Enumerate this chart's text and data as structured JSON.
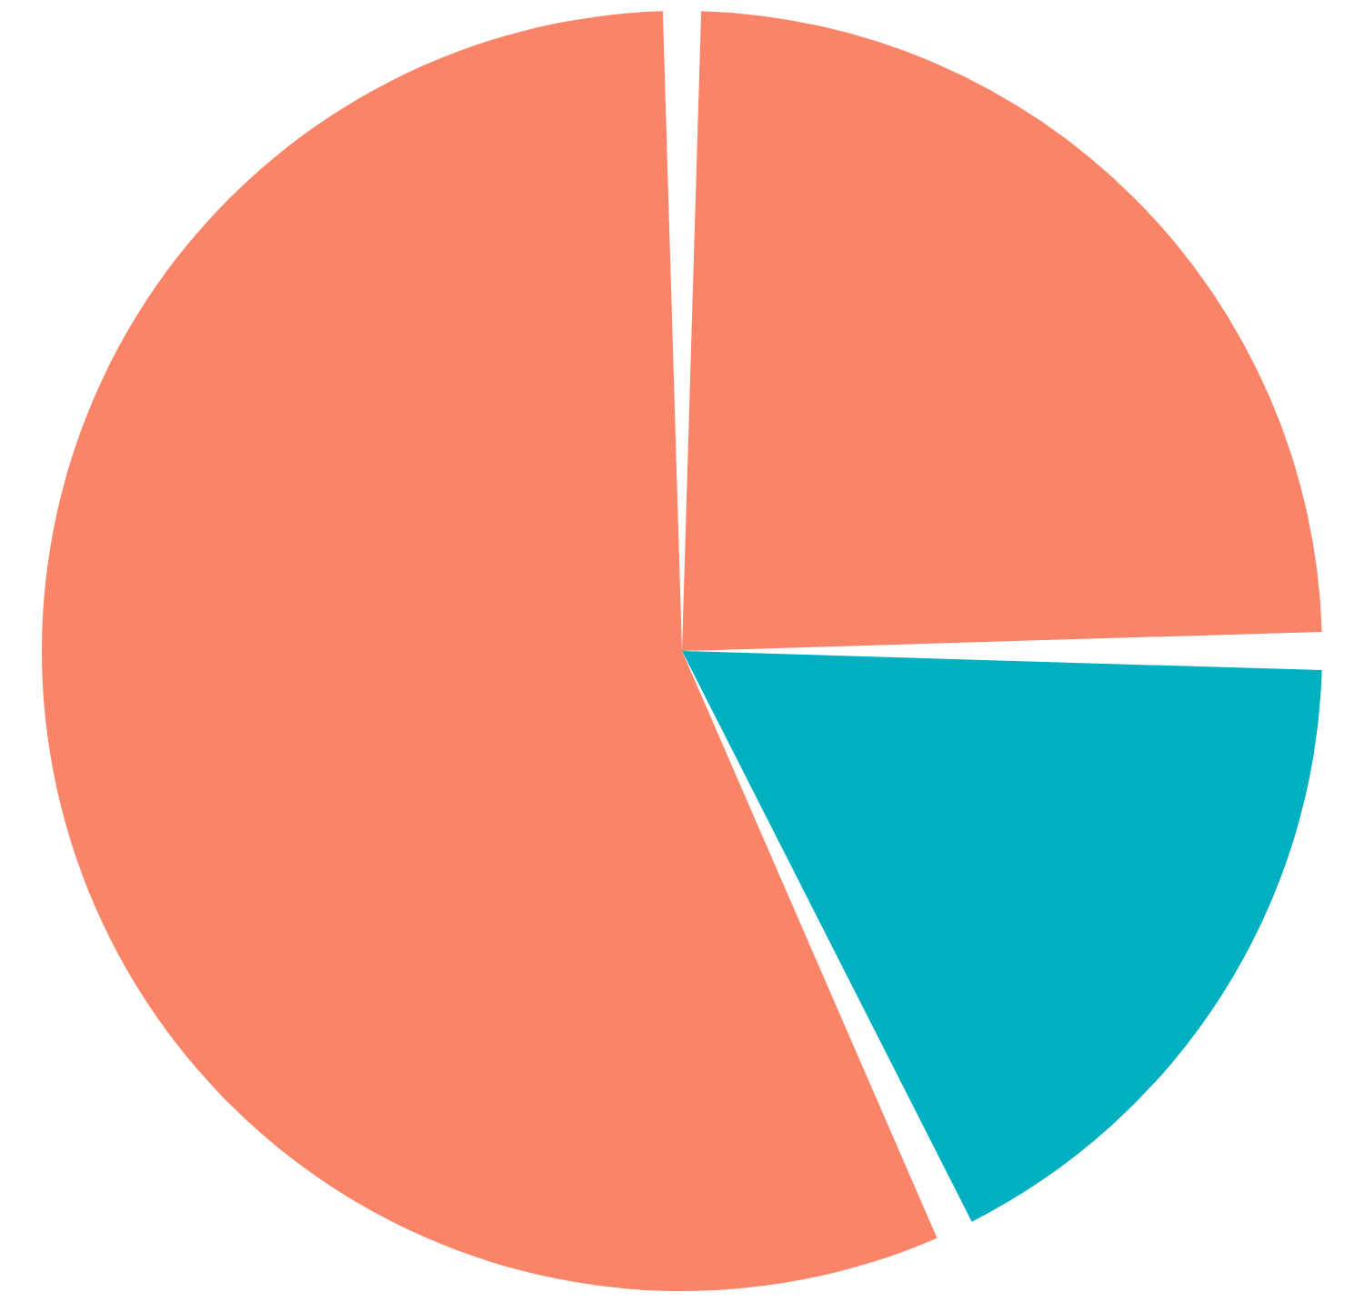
{
  "chart_data": {
    "type": "pie",
    "categories": [
      null,
      null,
      null
    ],
    "values": [
      25,
      18,
      57
    ],
    "colors": [
      "#fa8468",
      "#00b0c0",
      "#fa8468"
    ],
    "legend": false
  }
}
